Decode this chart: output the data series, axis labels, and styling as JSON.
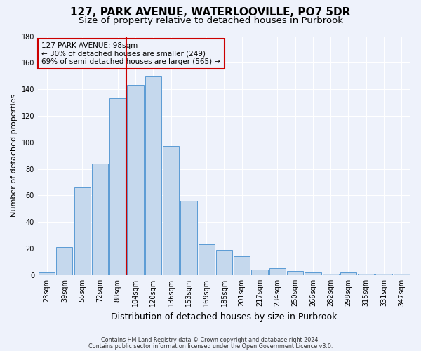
{
  "title": "127, PARK AVENUE, WATERLOOVILLE, PO7 5DR",
  "subtitle": "Size of property relative to detached houses in Purbrook",
  "xlabel": "Distribution of detached houses by size in Purbrook",
  "ylabel": "Number of detached properties",
  "bar_labels": [
    "23sqm",
    "39sqm",
    "55sqm",
    "72sqm",
    "88sqm",
    "104sqm",
    "120sqm",
    "136sqm",
    "153sqm",
    "169sqm",
    "185sqm",
    "201sqm",
    "217sqm",
    "234sqm",
    "250sqm",
    "266sqm",
    "282sqm",
    "298sqm",
    "315sqm",
    "331sqm",
    "347sqm"
  ],
  "bin_values": [
    2,
    21,
    66,
    84,
    133,
    143,
    150,
    97,
    56,
    23,
    19,
    14,
    4,
    5,
    3,
    2,
    1,
    2,
    1,
    1,
    1
  ],
  "bar_color": "#c5d8ed",
  "bar_edge_color": "#5b9bd5",
  "vline_color": "#cc0000",
  "annotation_text": "127 PARK AVENUE: 98sqm\n← 30% of detached houses are smaller (249)\n69% of semi-detached houses are larger (565) →",
  "annotation_box_color": "#cc0000",
  "ylim": [
    0,
    180
  ],
  "yticks": [
    0,
    20,
    40,
    60,
    80,
    100,
    120,
    140,
    160,
    180
  ],
  "footer1": "Contains HM Land Registry data © Crown copyright and database right 2024.",
  "footer2": "Contains public sector information licensed under the Open Government Licence v3.0.",
  "bg_color": "#eef2fb",
  "grid_color": "#ffffff",
  "title_fontsize": 11,
  "subtitle_fontsize": 9.5,
  "tick_fontsize": 7,
  "ylabel_fontsize": 8,
  "xlabel_fontsize": 9,
  "annotation_fontsize": 7.5,
  "footer_fontsize": 5.8
}
